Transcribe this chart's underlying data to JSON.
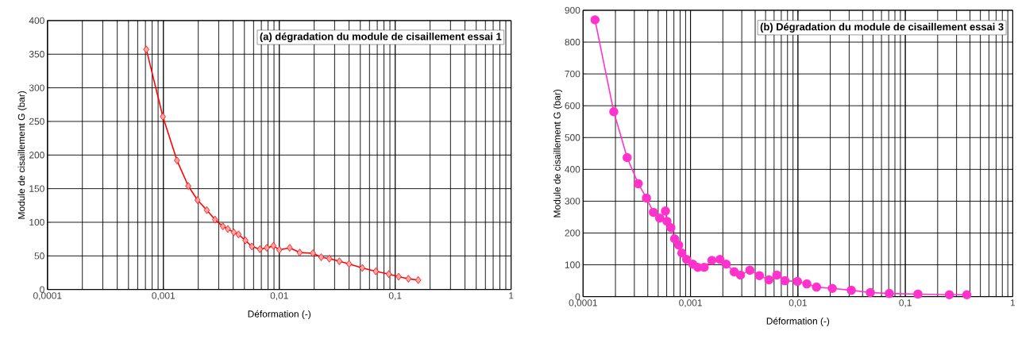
{
  "chart_data": [
    {
      "type": "line",
      "title": "(a) dégradation du module de cisaillement essai 1",
      "xlabel": "Déformation (-)",
      "ylabel": "Module de cisaillement G (bar)",
      "log": "x",
      "grid": true,
      "marker": "diamond",
      "line_style": "solid",
      "xlim": [
        0.0001,
        1
      ],
      "ylim": [
        0,
        400
      ],
      "xticks": [
        {
          "value": 0.0001,
          "label": "0,0001"
        },
        {
          "value": 0.001,
          "label": "0,001"
        },
        {
          "value": 0.01,
          "label": "0,01"
        },
        {
          "value": 0.1,
          "label": "0,1"
        },
        {
          "value": 1,
          "label": "1"
        }
      ],
      "yticks": [
        0,
        50,
        100,
        150,
        200,
        250,
        300,
        350,
        400
      ],
      "x": [
        0.000713,
        0.00099,
        0.00131,
        0.00164,
        0.00197,
        0.00237,
        0.00279,
        0.00326,
        0.0036,
        0.00405,
        0.00445,
        0.0051,
        0.0058,
        0.0068,
        0.0078,
        0.0089,
        0.01,
        0.0123,
        0.015,
        0.0195,
        0.023,
        0.027,
        0.033,
        0.04,
        0.052,
        0.068,
        0.088,
        0.107,
        0.13,
        0.158
      ],
      "series": [
        {
          "color": "#ff0000",
          "values": [
            357,
            257,
            192,
            154,
            133,
            118,
            104,
            94,
            90,
            85,
            82,
            73,
            64,
            60,
            62,
            65,
            59,
            62,
            55,
            54,
            48,
            46,
            42,
            38,
            32,
            27,
            23,
            19,
            16,
            14
          ]
        }
      ]
    },
    {
      "type": "line",
      "title": "(b) Dégradation du module de cisaillement essai 3",
      "xlabel": "Déformation (-)",
      "ylabel": "Module de cisaillement G (bar)",
      "log": "x",
      "grid": true,
      "marker": "circle",
      "line_style": "solid",
      "xlim": [
        0.0001,
        1
      ],
      "ylim": [
        0,
        900
      ],
      "xticks": [
        {
          "value": 0.0001,
          "label": "0,0001"
        },
        {
          "value": 0.001,
          "label": "0,001"
        },
        {
          "value": 0.01,
          "label": "0,01"
        },
        {
          "value": 0.1,
          "label": "0,1"
        },
        {
          "value": 1,
          "label": "1"
        }
      ],
      "yticks": [
        0,
        100,
        200,
        300,
        400,
        500,
        600,
        700,
        800,
        900
      ],
      "x": [
        0.000129,
        0.000193,
        0.000257,
        0.000326,
        0.000389,
        0.000451,
        0.000516,
        0.000584,
        0.000603,
        0.000656,
        0.000711,
        0.000776,
        0.000831,
        0.00092,
        0.00105,
        0.00117,
        0.00134,
        0.00158,
        0.00188,
        0.00215,
        0.00255,
        0.00292,
        0.00357,
        0.00438,
        0.00537,
        0.00637,
        0.00755,
        0.0099,
        0.0121,
        0.0149,
        0.0209,
        0.0314,
        0.0472,
        0.0709,
        0.131,
        0.257,
        0.374
      ],
      "series": [
        {
          "color": "#ff33cc",
          "values": [
            870,
            581,
            437,
            355,
            310,
            265,
            247,
            269,
            237,
            217,
            182,
            162,
            137,
            117,
            102,
            92,
            92,
            114,
            117,
            102,
            78,
            68,
            83,
            66,
            53,
            68,
            50,
            48,
            40,
            30,
            26,
            20,
            13,
            10,
            8,
            6,
            6
          ]
        }
      ]
    }
  ]
}
